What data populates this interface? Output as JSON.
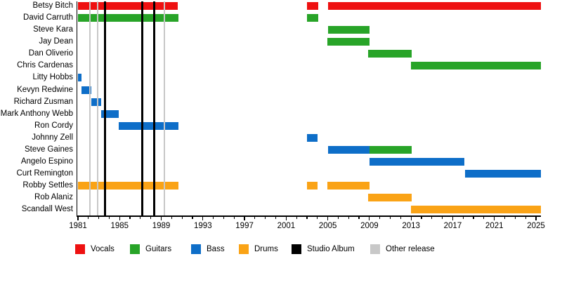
{
  "title": "",
  "colors": {
    "Vocals": "#ee1111",
    "Guitars": "#28a428",
    "Bass": "#0e6ec8",
    "Drums": "#faa316",
    "Studio Album": "#000000",
    "Other release": "#c8c8c8",
    "axis": "#000000",
    "text": "#000000",
    "background": "#ffffff"
  },
  "chart_data": {
    "type": "bar",
    "variant": "band-member-timeline-gantt",
    "title": "",
    "xlabel": "",
    "ylabel": "",
    "grid": false,
    "legend_position": "bottom",
    "x_axis": {
      "min": 1981,
      "max": 2025.5,
      "major_ticks": [
        1981,
        1985,
        1989,
        1993,
        1997,
        2001,
        2005,
        2009,
        2013,
        2017,
        2021,
        2025
      ],
      "minor_tick_step": 1
    },
    "members": [
      {
        "name": "Betsy Bitch",
        "segments": [
          {
            "role": "Vocals",
            "start": 1981,
            "end": 1990.6
          },
          {
            "role": "Vocals",
            "start": 2003,
            "end": 2004.05
          },
          {
            "role": "Vocals",
            "start": 2005,
            "end": 2025.5
          }
        ]
      },
      {
        "name": "David Carruth",
        "segments": [
          {
            "role": "Guitars",
            "start": 1981,
            "end": 1990.65
          },
          {
            "role": "Guitars",
            "start": 2003,
            "end": 2004.05
          }
        ]
      },
      {
        "name": "Steve Kara",
        "segments": [
          {
            "role": "Guitars",
            "start": 2005,
            "end": 2009
          }
        ]
      },
      {
        "name": "Jay Dean",
        "segments": [
          {
            "role": "Guitars",
            "start": 2004.95,
            "end": 2009
          }
        ]
      },
      {
        "name": "Dan Oliverio",
        "segments": [
          {
            "role": "Guitars",
            "start": 2008.9,
            "end": 2013.05
          }
        ]
      },
      {
        "name": "Chris Cardenas",
        "segments": [
          {
            "role": "Guitars",
            "start": 2013,
            "end": 2025.5
          }
        ]
      },
      {
        "name": "Litty Hobbs",
        "segments": [
          {
            "role": "Bass",
            "start": 1981,
            "end": 1981.35
          }
        ]
      },
      {
        "name": "Kevyn Redwine",
        "segments": [
          {
            "role": "Bass",
            "start": 1981.35,
            "end": 1982.3
          }
        ]
      },
      {
        "name": "Richard Zusman",
        "segments": [
          {
            "role": "Bass",
            "start": 1982.3,
            "end": 1983.2
          }
        ]
      },
      {
        "name": "Mark Anthony Webb",
        "segments": [
          {
            "role": "Bass",
            "start": 1983.2,
            "end": 1984.9
          }
        ]
      },
      {
        "name": "Ron Cordy",
        "segments": [
          {
            "role": "Bass",
            "start": 1984.9,
            "end": 1990.65
          }
        ]
      },
      {
        "name": "Johnny Zell",
        "segments": [
          {
            "role": "Bass",
            "start": 2003,
            "end": 2004
          }
        ]
      },
      {
        "name": "Steve Gaines",
        "segments": [
          {
            "role": "Bass",
            "start": 2005,
            "end": 2009
          },
          {
            "role": "Guitars",
            "start": 2009,
            "end": 2013.05
          }
        ]
      },
      {
        "name": "Angelo Espino",
        "segments": [
          {
            "role": "Bass",
            "start": 2009,
            "end": 2018.15
          }
        ]
      },
      {
        "name": "Curt Remington",
        "segments": [
          {
            "role": "Bass",
            "start": 2018.2,
            "end": 2025.5
          }
        ]
      },
      {
        "name": "Robby Settles",
        "segments": [
          {
            "role": "Drums",
            "start": 1981,
            "end": 1990.65
          },
          {
            "role": "Drums",
            "start": 2003,
            "end": 2004
          },
          {
            "role": "Drums",
            "start": 2004.95,
            "end": 2009
          }
        ]
      },
      {
        "name": "Rob Alaniz",
        "segments": [
          {
            "role": "Drums",
            "start": 2008.9,
            "end": 2013.05
          }
        ]
      },
      {
        "name": "Scandall West",
        "segments": [
          {
            "role": "Drums",
            "start": 2013,
            "end": 2025.45
          }
        ]
      }
    ],
    "events": [
      {
        "type": "Other release",
        "year": 1982.15
      },
      {
        "type": "Other release",
        "year": 1982.9
      },
      {
        "type": "Studio Album",
        "year": 1983.6
      },
      {
        "type": "Studio Album",
        "year": 1987.2
      },
      {
        "type": "Studio Album",
        "year": 1988.3
      },
      {
        "type": "Other release",
        "year": 1989.3
      }
    ],
    "legend": [
      {
        "label": "Vocals"
      },
      {
        "label": "Guitars"
      },
      {
        "label": "Bass"
      },
      {
        "label": "Drums"
      },
      {
        "label": "Studio Album"
      },
      {
        "label": "Other release"
      }
    ]
  }
}
